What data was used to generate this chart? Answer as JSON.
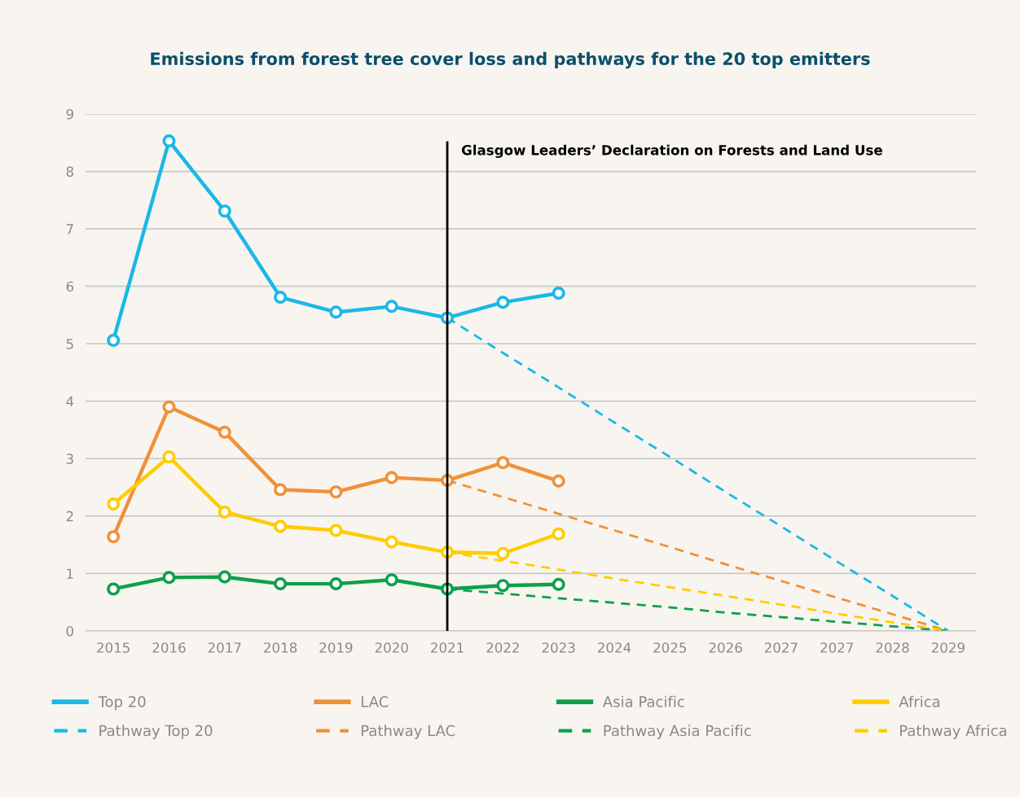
{
  "chart_data": {
    "type": "line",
    "title": "Emissions from forest tree cover loss and pathways for the 20 top emitters",
    "categories": [
      "2015",
      "2016",
      "2017",
      "2018",
      "2019",
      "2020",
      "2021",
      "2022",
      "2023",
      "2024",
      "2025",
      "2026",
      "2027",
      "2027",
      "2028",
      "2029"
    ],
    "series": [
      {
        "name": "Top 20",
        "color": "#1ab8e6",
        "marker": "circle",
        "line_style": "solid",
        "values": [
          5.06,
          8.53,
          7.31,
          5.81,
          5.55,
          5.65,
          5.45,
          5.72,
          5.88,
          null,
          null,
          null,
          null,
          null,
          null,
          null
        ]
      },
      {
        "name": "LAC",
        "color": "#f0913a",
        "marker": "circle",
        "line_style": "solid",
        "values": [
          1.64,
          3.9,
          3.46,
          2.46,
          2.42,
          2.67,
          2.62,
          2.93,
          2.61,
          null,
          null,
          null,
          null,
          null,
          null,
          null
        ]
      },
      {
        "name": "Asia Pacific",
        "color": "#0ca14a",
        "marker": "circle",
        "line_style": "solid",
        "values": [
          0.73,
          0.93,
          0.94,
          0.82,
          0.82,
          0.89,
          0.73,
          0.79,
          0.81,
          null,
          null,
          null,
          null,
          null,
          null,
          null
        ]
      },
      {
        "name": "Africa",
        "color": "#ffcc00",
        "marker": "circle",
        "line_style": "solid",
        "values": [
          2.21,
          3.03,
          2.07,
          1.82,
          1.75,
          1.55,
          1.37,
          1.35,
          1.69,
          null,
          null,
          null,
          null,
          null,
          null,
          null
        ]
      },
      {
        "name": "Pathway Top 20",
        "color": "#1ab8e6",
        "marker": "none",
        "line_style": "dashed",
        "values": [
          null,
          null,
          null,
          null,
          null,
          null,
          5.45,
          4.84,
          4.24,
          3.63,
          3.03,
          2.42,
          1.82,
          1.21,
          0.61,
          0
        ]
      },
      {
        "name": "Pathway LAC",
        "color": "#f0913a",
        "marker": "none",
        "line_style": "dashed",
        "values": [
          null,
          null,
          null,
          null,
          null,
          null,
          2.62,
          2.33,
          2.04,
          1.75,
          1.46,
          1.16,
          0.87,
          0.58,
          0.29,
          0
        ]
      },
      {
        "name": "Pathway Asia Pacific",
        "color": "#0ca14a",
        "marker": "none",
        "line_style": "dashed",
        "values": [
          null,
          null,
          null,
          null,
          null,
          null,
          0.73,
          0.65,
          0.57,
          0.49,
          0.41,
          0.32,
          0.24,
          0.16,
          0.08,
          0
        ]
      },
      {
        "name": "Pathway Africa",
        "color": "#ffcc00",
        "marker": "none",
        "line_style": "dashed",
        "values": [
          null,
          null,
          null,
          null,
          null,
          null,
          1.37,
          1.22,
          1.07,
          0.91,
          0.76,
          0.61,
          0.46,
          0.3,
          0.15,
          0
        ]
      }
    ],
    "ylim": [
      0,
      9
    ],
    "yticks": [
      0,
      1,
      2,
      3,
      4,
      5,
      6,
      7,
      8,
      9
    ],
    "grid": "y",
    "legend": "bottom",
    "ref_lines": [
      {
        "axis": "x",
        "value": "2021",
        "label": "Glasgow Leaders’ Declaration on Forests and Land Use",
        "color": "#000000",
        "line_style": "solid"
      }
    ]
  }
}
